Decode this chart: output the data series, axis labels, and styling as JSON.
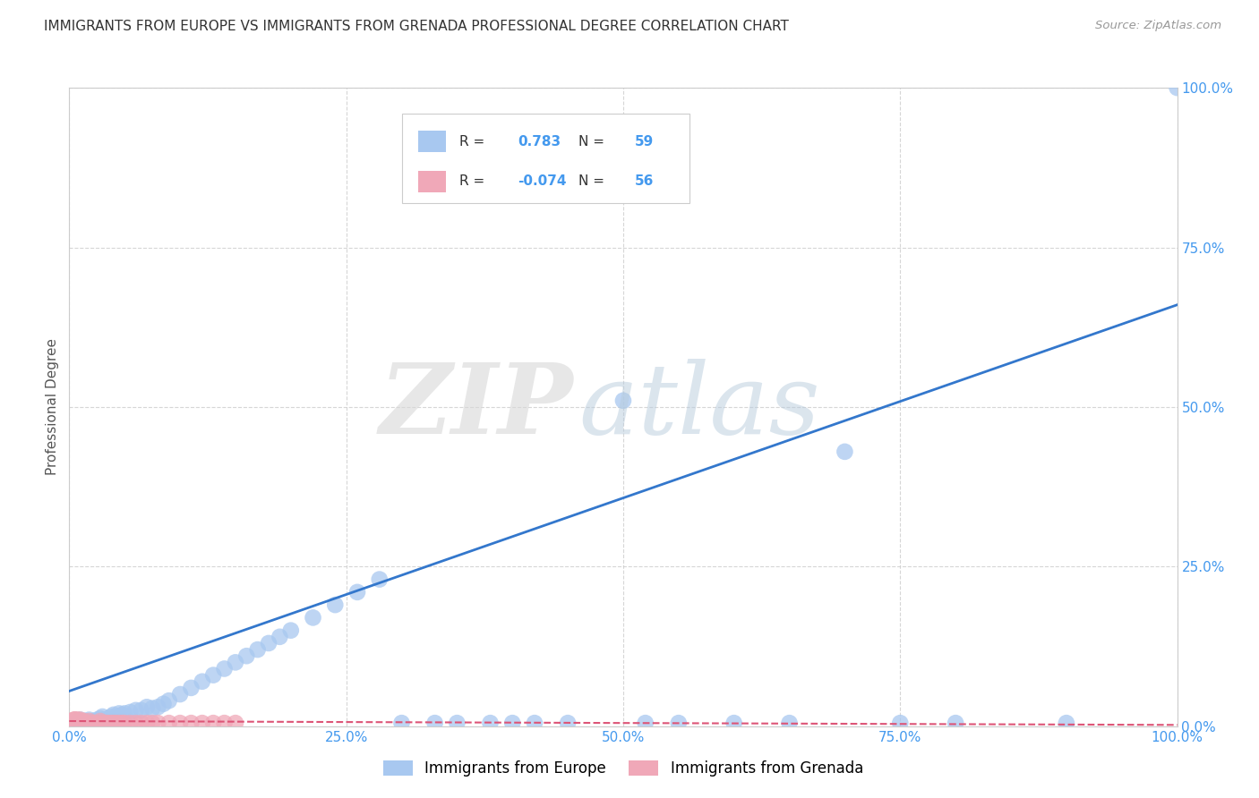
{
  "title": "IMMIGRANTS FROM EUROPE VS IMMIGRANTS FROM GRENADA PROFESSIONAL DEGREE CORRELATION CHART",
  "source": "Source: ZipAtlas.com",
  "ylabel": "Professional Degree",
  "xlim": [
    0,
    1.0
  ],
  "ylim": [
    0,
    1.0
  ],
  "xtick_labels": [
    "0.0%",
    "25.0%",
    "50.0%",
    "75.0%",
    "100.0%"
  ],
  "xtick_vals": [
    0.0,
    0.25,
    0.5,
    0.75,
    1.0
  ],
  "ytick_labels": [
    "0.0%",
    "25.0%",
    "50.0%",
    "75.0%",
    "100.0%"
  ],
  "ytick_vals": [
    0.0,
    0.25,
    0.5,
    0.75,
    1.0
  ],
  "grid_color": "#cccccc",
  "background_color": "#ffffff",
  "europe_color": "#a8c8f0",
  "grenada_color": "#f0a8b8",
  "europe_line_color": "#3377cc",
  "grenada_line_color": "#dd5577",
  "R_europe": 0.783,
  "N_europe": 59,
  "R_grenada": -0.074,
  "N_grenada": 56,
  "tick_color": "#4499ee",
  "legend_label_europe": "Immigrants from Europe",
  "legend_label_grenada": "Immigrants from Grenada",
  "europe_x": [
    0.005,
    0.008,
    0.01,
    0.012,
    0.015,
    0.018,
    0.02,
    0.022,
    0.025,
    0.028,
    0.03,
    0.032,
    0.035,
    0.038,
    0.04,
    0.042,
    0.045,
    0.048,
    0.05,
    0.055,
    0.06,
    0.065,
    0.07,
    0.075,
    0.08,
    0.085,
    0.09,
    0.1,
    0.11,
    0.12,
    0.13,
    0.14,
    0.15,
    0.16,
    0.17,
    0.18,
    0.19,
    0.2,
    0.22,
    0.24,
    0.26,
    0.28,
    0.3,
    0.33,
    0.35,
    0.38,
    0.4,
    0.42,
    0.45,
    0.5,
    0.52,
    0.55,
    0.6,
    0.65,
    0.7,
    0.75,
    0.8,
    0.9,
    1.0
  ],
  "europe_y": [
    0.005,
    0.005,
    0.01,
    0.005,
    0.008,
    0.01,
    0.005,
    0.008,
    0.01,
    0.012,
    0.015,
    0.01,
    0.012,
    0.015,
    0.018,
    0.015,
    0.02,
    0.018,
    0.02,
    0.022,
    0.025,
    0.025,
    0.03,
    0.028,
    0.03,
    0.035,
    0.04,
    0.05,
    0.06,
    0.07,
    0.08,
    0.09,
    0.1,
    0.11,
    0.12,
    0.13,
    0.14,
    0.15,
    0.17,
    0.19,
    0.21,
    0.23,
    0.005,
    0.005,
    0.005,
    0.005,
    0.005,
    0.005,
    0.005,
    0.51,
    0.005,
    0.005,
    0.005,
    0.005,
    0.43,
    0.005,
    0.005,
    0.005,
    1.0
  ],
  "grenada_x": [
    0.002,
    0.002,
    0.003,
    0.003,
    0.004,
    0.004,
    0.005,
    0.005,
    0.005,
    0.005,
    0.005,
    0.005,
    0.005,
    0.005,
    0.006,
    0.006,
    0.007,
    0.007,
    0.008,
    0.008,
    0.009,
    0.009,
    0.01,
    0.01,
    0.011,
    0.012,
    0.013,
    0.015,
    0.016,
    0.018,
    0.02,
    0.022,
    0.025,
    0.028,
    0.03,
    0.033,
    0.035,
    0.038,
    0.04,
    0.042,
    0.045,
    0.048,
    0.05,
    0.055,
    0.06,
    0.065,
    0.07,
    0.075,
    0.08,
    0.09,
    0.1,
    0.11,
    0.12,
    0.13,
    0.14,
    0.15
  ],
  "grenada_y": [
    0.005,
    0.008,
    0.005,
    0.008,
    0.005,
    0.01,
    0.005,
    0.008,
    0.01,
    0.005,
    0.008,
    0.01,
    0.005,
    0.008,
    0.005,
    0.01,
    0.005,
    0.008,
    0.005,
    0.01,
    0.005,
    0.008,
    0.005,
    0.01,
    0.005,
    0.005,
    0.008,
    0.005,
    0.005,
    0.008,
    0.005,
    0.005,
    0.005,
    0.008,
    0.005,
    0.005,
    0.005,
    0.005,
    0.005,
    0.005,
    0.005,
    0.005,
    0.005,
    0.005,
    0.005,
    0.005,
    0.005,
    0.005,
    0.005,
    0.005,
    0.005,
    0.005,
    0.005,
    0.005,
    0.005,
    0.005
  ],
  "europe_line_x": [
    0.0,
    1.0
  ],
  "europe_line_y": [
    0.055,
    0.66
  ],
  "grenada_line_x": [
    0.0,
    1.0
  ],
  "grenada_line_y": [
    0.008,
    0.002
  ]
}
